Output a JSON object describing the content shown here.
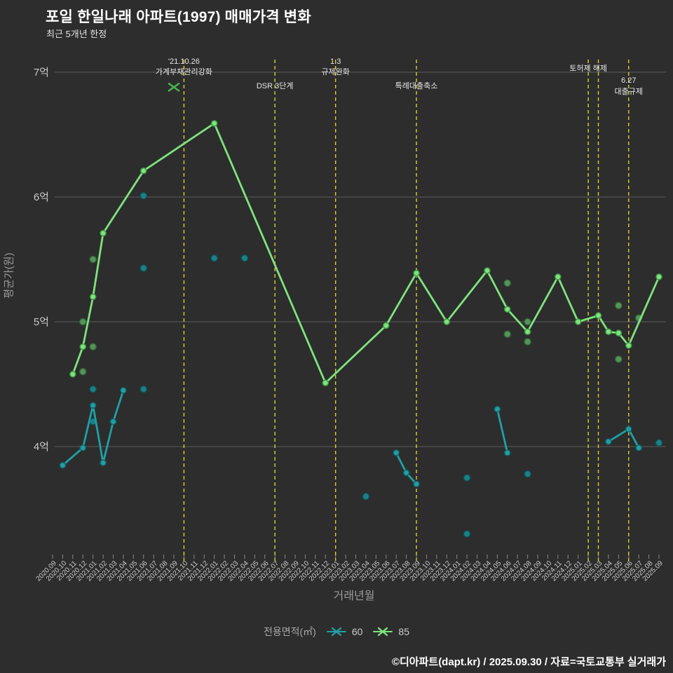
{
  "footer": {
    "text": "©디아파트(dapt.kr) / 2025.09.30 / 자료=국토교통부 실거래가"
  },
  "chart_data": {
    "type": "line",
    "title": "포일 한일나래 아파트(1997) 매매가격 변화",
    "subtitle": "최근 5개년 한정",
    "xlabel": "거래년월",
    "ylabel": "평균가(원)",
    "legend_title": "전용면적(㎡)",
    "grid": true,
    "y_unit": "억",
    "ylim": [
      3.0,
      7.1
    ],
    "y_ticks": [
      {
        "label": "7억",
        "value": 7
      },
      {
        "label": "6억",
        "value": 6
      },
      {
        "label": "5억",
        "value": 5
      },
      {
        "label": "4억",
        "value": 4
      }
    ],
    "x_categories": [
      "2020.09",
      "2020.10",
      "2020.11",
      "2020.12",
      "2021.01",
      "2021.02",
      "2021.03",
      "2021.04",
      "2021.05",
      "2021.06",
      "2021.07",
      "2021.08",
      "2021.09",
      "2021.10",
      "2021.11",
      "2021.12",
      "2022.01",
      "2022.02",
      "2022.03",
      "2022.04",
      "2022.05",
      "2022.06",
      "2022.07",
      "2022.08",
      "2022.09",
      "2022.10",
      "2022.11",
      "2022.12",
      "2023.01",
      "2023.02",
      "2023.03",
      "2023.04",
      "2023.05",
      "2023.06",
      "2023.07",
      "2023.08",
      "2023.09",
      "2023.10",
      "2023.11",
      "2023.12",
      "2024.01",
      "2024.02",
      "2024.03",
      "2024.04",
      "2024.05",
      "2024.06",
      "2024.07",
      "2024.08",
      "2024.09",
      "2024.10",
      "2024.11",
      "2024.12",
      "2025.01",
      "2025.02",
      "2025.03",
      "2025.04",
      "2025.05",
      "2025.06",
      "2025.07",
      "2025.08",
      "2025.09"
    ],
    "colors": {
      "background": "#2d2d2d",
      "grid": "#5c5c5c",
      "tick_text": "#c9c9c9",
      "axis_title_text": "#9a9a9a",
      "annotation_text": "#e8e8e8",
      "event_line": "#d9cf3a",
      "event_marker": "#46b24c"
    },
    "series": [
      {
        "name": "60",
        "color": "#20a0a6",
        "marker_stroke": "#136468",
        "dim_color": "#1b868c",
        "dim_stroke": "#0f5257",
        "line_groups": [
          [
            [
              "2020.10",
              3.85
            ],
            [
              "2020.12",
              3.99
            ],
            [
              "2021.01",
              4.33
            ],
            [
              "2021.02",
              3.87
            ],
            [
              "2021.03",
              4.2
            ],
            [
              "2021.04",
              4.45
            ]
          ],
          [
            [
              "2023.07",
              3.95
            ],
            [
              "2023.08",
              3.79
            ],
            [
              "2023.09",
              3.7
            ]
          ],
          [
            [
              "2024.05",
              4.3
            ],
            [
              "2024.06",
              3.95
            ]
          ],
          [
            [
              "2025.04",
              4.04
            ],
            [
              "2025.06",
              4.14
            ],
            [
              "2025.07",
              3.99
            ]
          ]
        ],
        "scatter": [
          [
            "2021.01",
            4.2
          ],
          [
            "2021.01",
            4.46
          ],
          [
            "2021.06",
            4.46
          ],
          [
            "2021.06",
            5.43
          ],
          [
            "2021.06",
            6.01
          ],
          [
            "2022.01",
            5.51
          ],
          [
            "2022.04",
            5.51
          ],
          [
            "2023.04",
            3.6
          ],
          [
            "2024.02",
            3.75
          ],
          [
            "2024.02",
            3.3
          ],
          [
            "2024.08",
            3.78
          ],
          [
            "2025.09",
            4.03
          ]
        ]
      },
      {
        "name": "85",
        "color": "#7ee37e",
        "marker_stroke": "#3f9a44",
        "dim_color": "#569a5d",
        "dim_stroke": "#35663a",
        "line_groups": [
          [
            [
              "2020.11",
              4.58
            ],
            [
              "2020.12",
              4.8
            ],
            [
              "2021.01",
              5.2
            ],
            [
              "2021.02",
              5.71
            ],
            [
              "2021.06",
              6.21
            ],
            [
              "2022.01",
              6.59
            ],
            [
              "2022.12",
              4.51
            ],
            [
              "2023.06",
              4.97
            ],
            [
              "2023.09",
              5.39
            ],
            [
              "2023.12",
              5.0
            ],
            [
              "2024.04",
              5.41
            ],
            [
              "2024.06",
              5.1
            ],
            [
              "2024.08",
              4.92
            ],
            [
              "2024.11",
              5.36
            ],
            [
              "2025.01",
              5.0
            ],
            [
              "2025.03",
              5.05
            ],
            [
              "2025.04",
              4.92
            ],
            [
              "2025.05",
              4.91
            ],
            [
              "2025.06",
              4.81
            ],
            [
              "2025.09",
              5.36
            ]
          ]
        ],
        "scatter": [
          [
            "2020.12",
            4.6
          ],
          [
            "2020.12",
            5.0
          ],
          [
            "2021.01",
            4.8
          ],
          [
            "2021.01",
            5.5
          ],
          [
            "2024.06",
            5.31
          ],
          [
            "2024.06",
            4.9
          ],
          [
            "2024.08",
            5.0
          ],
          [
            "2024.08",
            4.84
          ],
          [
            "2025.05",
            5.13
          ],
          [
            "2025.05",
            4.7
          ],
          [
            "2025.07",
            5.03
          ]
        ]
      }
    ],
    "events": [
      {
        "month": "2021.10",
        "labels": [
          {
            "text": "'21.10.26",
            "y": 91
          },
          {
            "text": "가계부채관리강화",
            "y": 106
          }
        ],
        "marker": {
          "month": "2021.09",
          "value": 6.88
        }
      },
      {
        "month": "2022.07",
        "labels": [
          {
            "text": "DSR 3단계",
            "y": 126
          }
        ]
      },
      {
        "month": "2023.01",
        "labels": [
          {
            "text": "1.3",
            "y": 91
          },
          {
            "text": "규제완화",
            "y": 106
          }
        ]
      },
      {
        "month": "2023.09",
        "labels": [
          {
            "text": "특례대출축소",
            "y": 126
          }
        ]
      },
      {
        "month": "2025.02",
        "labels": [
          {
            "text": "토허제 해제",
            "y": 101
          }
        ]
      },
      {
        "month": "2025.03",
        "labels": []
      },
      {
        "month": "2025.06",
        "labels": [
          {
            "text": "6.27",
            "y": 118
          },
          {
            "text": "대출규제",
            "y": 134
          }
        ]
      }
    ]
  }
}
